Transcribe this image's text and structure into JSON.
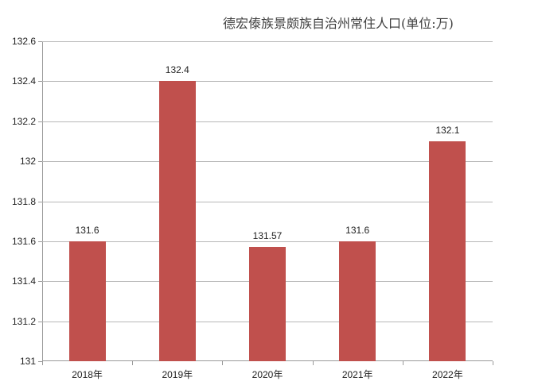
{
  "chart_data": {
    "type": "bar",
    "title": "德宏傣族景颇族自治州常住人口(单位:万)",
    "categories": [
      "2018年",
      "2019年",
      "2020年",
      "2021年",
      "2022年"
    ],
    "values": [
      131.6,
      132.4,
      131.57,
      131.6,
      132.1
    ],
    "data_labels": [
      "131.6",
      "132.4",
      "131.57",
      "131.6",
      "132.1"
    ],
    "xlabel": "",
    "ylabel": "",
    "ylim": [
      131,
      132.6
    ],
    "yticks": [
      "132.6",
      "132.4",
      "132.2",
      "132",
      "131.8",
      "131.6",
      "131.4",
      "131.2",
      "131"
    ],
    "grid": true,
    "legend": null,
    "bar_color": "#c0504d"
  }
}
